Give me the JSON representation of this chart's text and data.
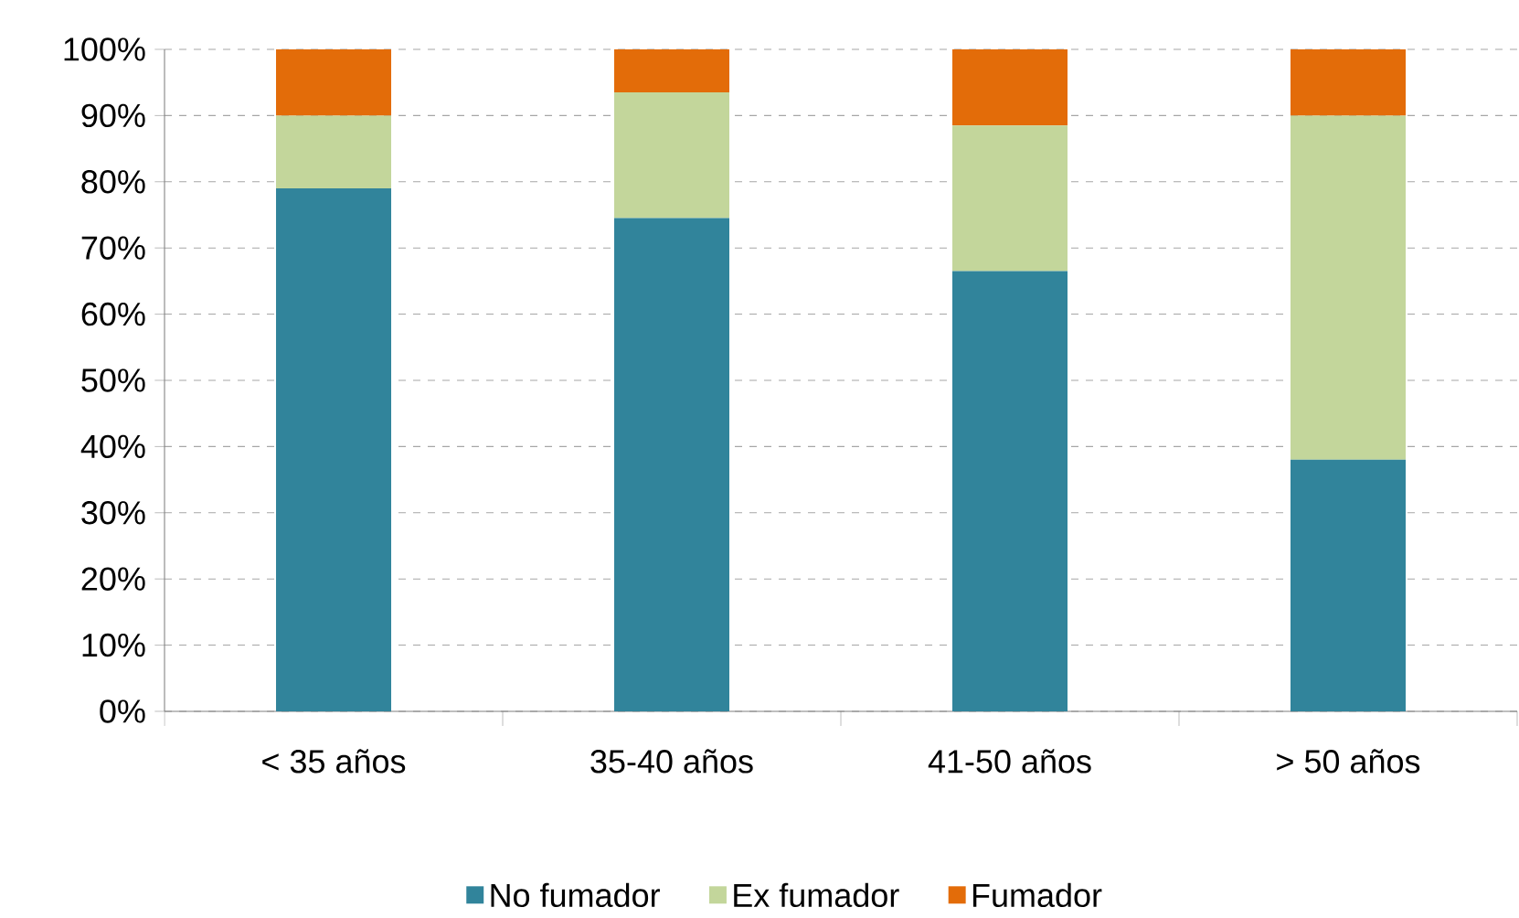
{
  "chart_data": {
    "type": "bar",
    "stacked": true,
    "categories": [
      "< 35 años",
      "35-40 años",
      "41-50 años",
      "> 50 años"
    ],
    "series": [
      {
        "name": "No fumador",
        "color": "#31849b",
        "values": [
          79,
          74.5,
          66.5,
          38
        ]
      },
      {
        "name": "Ex fumador",
        "color": "#c3d69b",
        "values": [
          11,
          19,
          22,
          52
        ]
      },
      {
        "name": "Fumador",
        "color": "#e36c09",
        "values": [
          10,
          6.5,
          11.5,
          10
        ]
      }
    ],
    "ylim": [
      0,
      100
    ],
    "yticks": [
      {
        "value": 0,
        "label": "0%"
      },
      {
        "value": 10,
        "label": "10%"
      },
      {
        "value": 20,
        "label": "20%"
      },
      {
        "value": 30,
        "label": "30%"
      },
      {
        "value": 40,
        "label": "40%"
      },
      {
        "value": 50,
        "label": "50%"
      },
      {
        "value": 60,
        "label": "60%"
      },
      {
        "value": 70,
        "label": "70%"
      },
      {
        "value": 80,
        "label": "80%"
      },
      {
        "value": 90,
        "label": "90%"
      },
      {
        "value": 100,
        "label": "100%"
      }
    ],
    "grid": "y",
    "legend": "bottom"
  }
}
